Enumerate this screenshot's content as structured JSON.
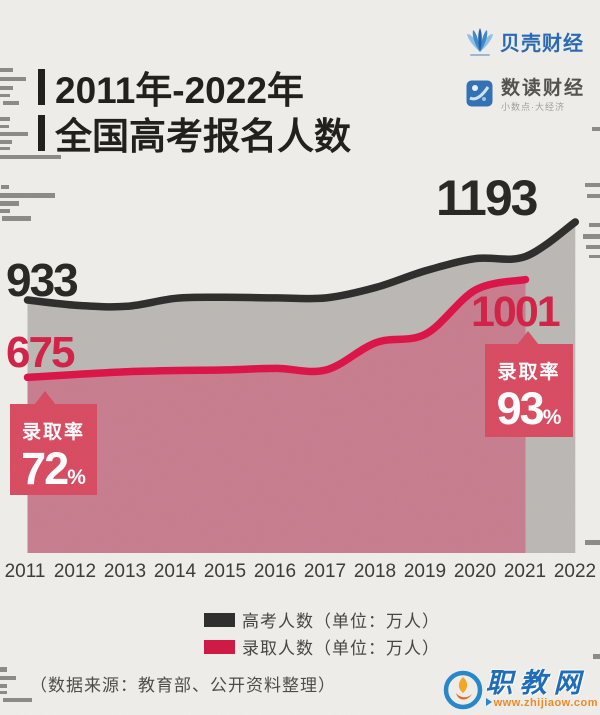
{
  "title": {
    "line1": "2011年-2022年",
    "line2": "全国高考报名人数"
  },
  "logos": {
    "beike": {
      "name": "贝壳财经"
    },
    "shudu": {
      "name": "数读财经",
      "tagline": "小数点·大经济"
    }
  },
  "chart_data": {
    "type": "line",
    "x": [
      2011,
      2012,
      2013,
      2014,
      2015,
      2016,
      2017,
      2018,
      2019,
      2020,
      2021,
      2022
    ],
    "series": [
      {
        "name": "高考人数（单位：万人）",
        "color": "#2c2a28",
        "area_color": "#bbb8b4",
        "values": [
          933,
          915,
          912,
          939,
          942,
          940,
          940,
          975,
          1031,
          1071,
          1078,
          1193
        ]
      },
      {
        "name": "录取人数（单位：万人）",
        "color": "#dc1044",
        "area_color": "#c77c8e",
        "values": [
          675,
          685,
          694,
          698,
          700,
          705,
          700,
          791,
          820,
          967,
          1001
        ]
      }
    ],
    "title": "2011年-2022年全国高考报名人数",
    "grid": false,
    "legend_position": "bottom",
    "labeled_points": {
      "exam_2011": 933,
      "exam_2022": 1193,
      "admit_2011": 675,
      "admit_2021": 1001
    }
  },
  "annotations": {
    "exam_start": "933",
    "admit_start": "675",
    "exam_end": "1193",
    "admit_end": "1001",
    "rate_left": {
      "label": "录取率",
      "value": "72",
      "unit": "%"
    },
    "rate_right": {
      "label": "录取率",
      "value": "93",
      "unit": "%"
    }
  },
  "footer": {
    "source": "（数据来源：教育部、公开资料整理）"
  },
  "watermark": {
    "site": "职教网",
    "url": "www.zhijiaow.com"
  }
}
